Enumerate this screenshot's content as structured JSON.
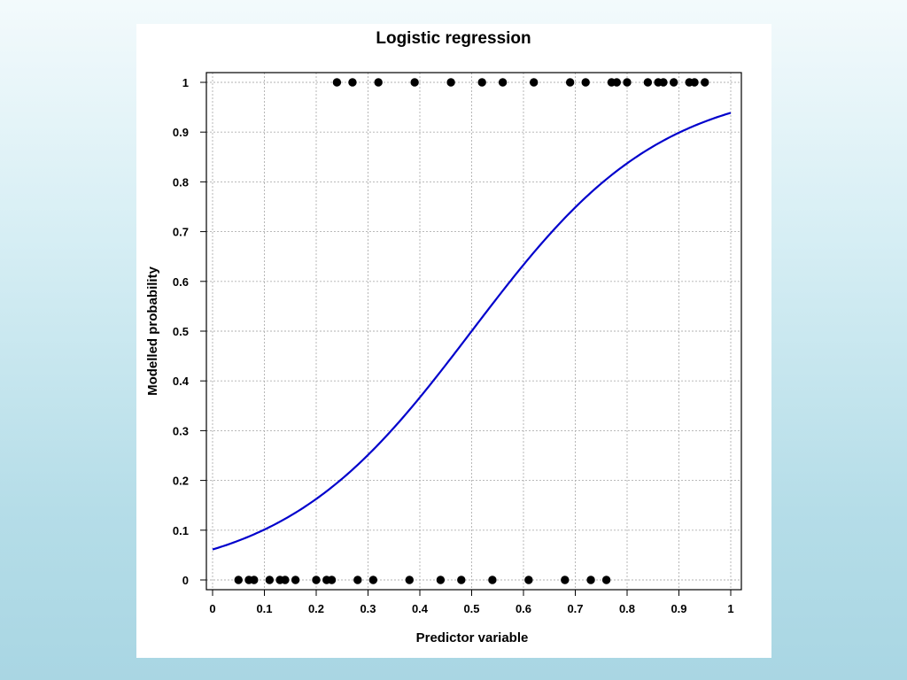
{
  "chart_data": {
    "type": "scatter",
    "title": "Logistic regression",
    "xlabel": "Predictor variable",
    "ylabel": "Modelled probability",
    "xlim": [
      0,
      1
    ],
    "ylim": [
      0,
      1
    ],
    "grid": true,
    "x_ticks": [
      0,
      0.1,
      0.2,
      0.3,
      0.4,
      0.5,
      0.6,
      0.7,
      0.8,
      0.9,
      1
    ],
    "y_ticks": [
      0,
      0.1,
      0.2,
      0.3,
      0.4,
      0.5,
      0.6,
      0.7,
      0.8,
      0.9,
      1
    ],
    "x_tick_labels": [
      "0",
      "0.1",
      "0.2",
      "0.3",
      "0.4",
      "0.5",
      "0.6",
      "0.7",
      "0.8",
      "0.9",
      "1"
    ],
    "y_tick_labels": [
      "0",
      "0.1",
      "0.2",
      "0.3",
      "0.4",
      "0.5",
      "0.6",
      "0.7",
      "0.8",
      "0.9",
      "1"
    ],
    "points": {
      "x_zero": [
        0.05,
        0.07,
        0.08,
        0.11,
        0.13,
        0.14,
        0.16,
        0.2,
        0.22,
        0.23,
        0.28,
        0.31,
        0.38,
        0.44,
        0.48,
        0.54,
        0.61,
        0.68,
        0.73,
        0.76
      ],
      "x_one": [
        0.24,
        0.27,
        0.32,
        0.39,
        0.46,
        0.52,
        0.56,
        0.62,
        0.69,
        0.72,
        0.77,
        0.78,
        0.8,
        0.84,
        0.86,
        0.87,
        0.89,
        0.92,
        0.93,
        0.95
      ]
    },
    "curve": {
      "type": "logistic",
      "intercept": -2.73,
      "slope": 5.46,
      "x_range": [
        0,
        1
      ],
      "color": "#0000cc"
    },
    "point_color": "#000000",
    "grid_color": "#b0b0b0"
  }
}
